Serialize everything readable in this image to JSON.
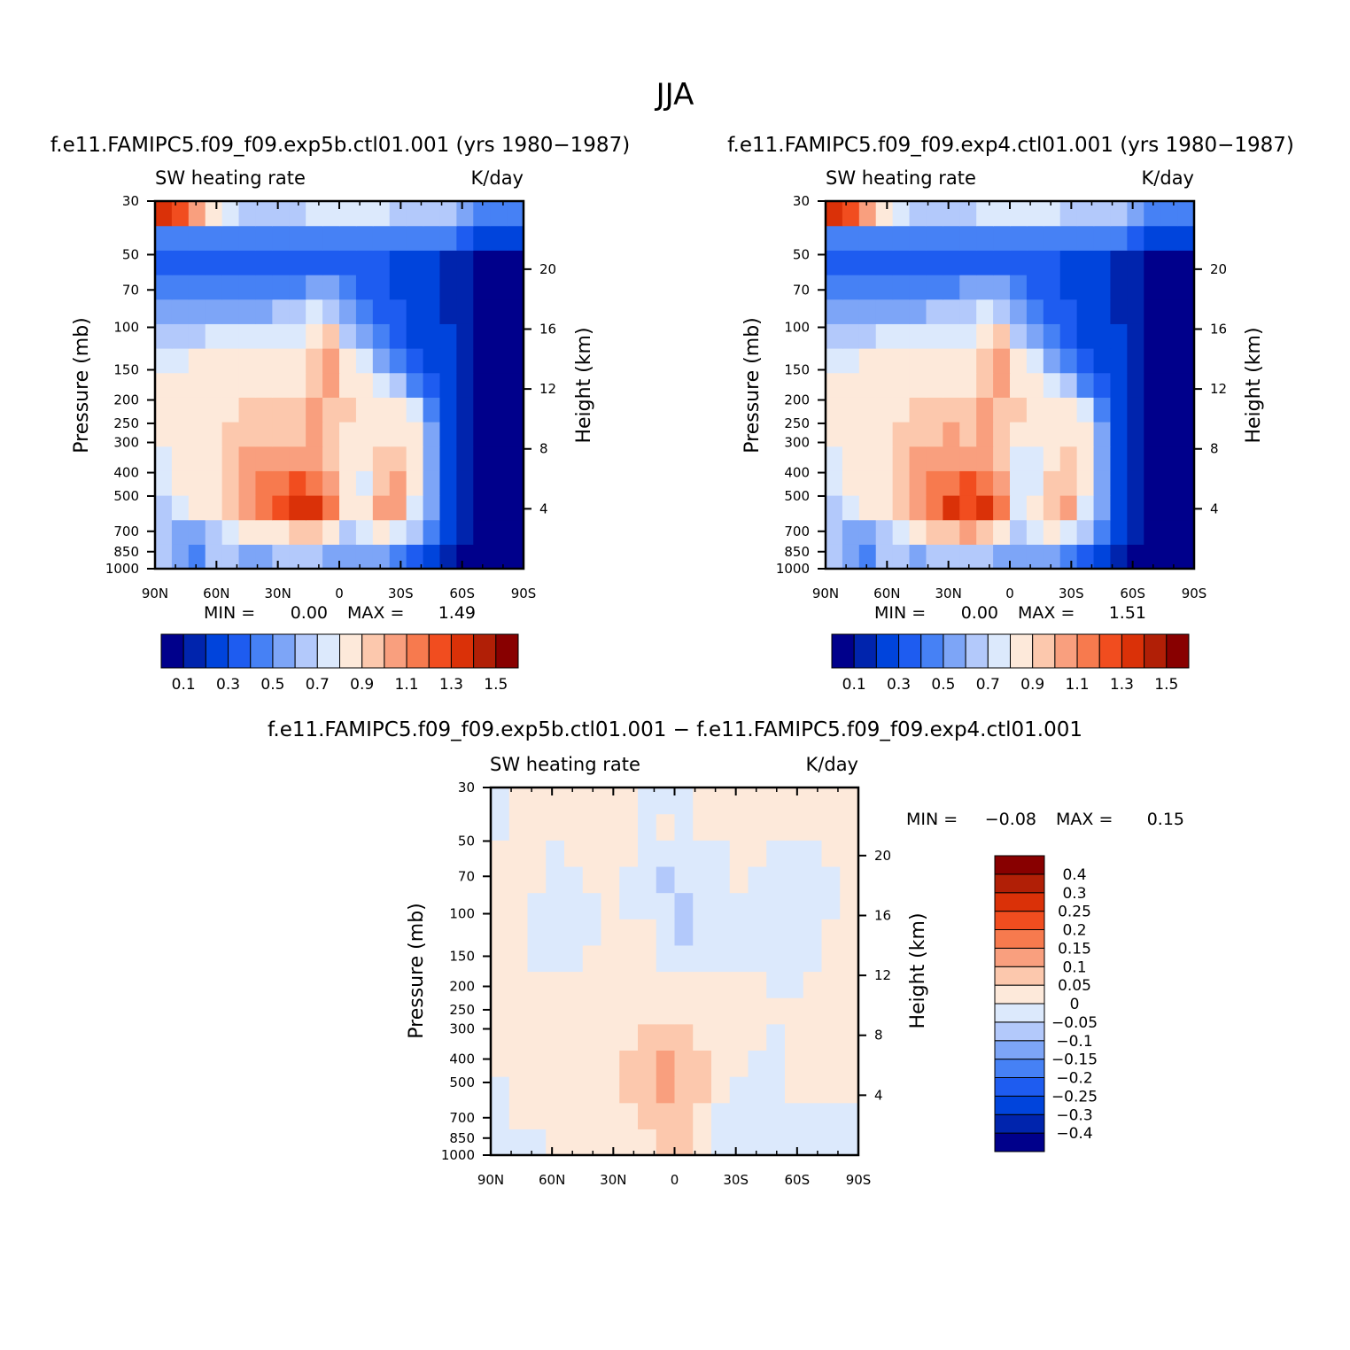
{
  "figure": {
    "title": "JJA"
  },
  "colors": {
    "full_field": [
      "#00008b",
      "#0024ad",
      "#0044dc",
      "#1e5cf0",
      "#4681f5",
      "#7da5f7",
      "#b3c9fb",
      "#dce9fc",
      "#fde9da",
      "#fcc8ad",
      "#f99f7e",
      "#f77a4e",
      "#f14d1f",
      "#da3108",
      "#b11f06",
      "#880000"
    ],
    "difference": [
      "#00008b",
      "#0024ad",
      "#0044dc",
      "#1e5cf0",
      "#4681f5",
      "#7da5f7",
      "#b3c9fb",
      "#dce9fc",
      "#fde9da",
      "#fcc8ad",
      "#f99f7e",
      "#f77a4e",
      "#f14d1f",
      "#da3108",
      "#b11f06",
      "#880000"
    ]
  },
  "chart_data": [
    {
      "type": "heatmap",
      "case": "f.e11.FAMIPC5.f09_f09.exp5b.ctl01.001 (yrs 1980−1987)",
      "variable": "SW heating rate",
      "units": "K/day",
      "ylabel": "Pressure (mb)",
      "ylabel_right": "Height (km)",
      "x_ticks": [
        "90N",
        "60N",
        "30N",
        "0",
        "30S",
        "60S",
        "90S"
      ],
      "y_ticks": [
        "30",
        "50",
        "70",
        "100",
        "150",
        "200",
        "250",
        "300",
        "400",
        "500",
        "700",
        "850",
        "1000"
      ],
      "y_ticks_right": [
        "20",
        "16",
        "12",
        "8",
        "4"
      ],
      "min_label": "MIN =",
      "min_value": "0.00",
      "max_label": "MAX =",
      "max_value": "1.49",
      "colorbar_labels": [
        "0.1",
        "0.3",
        "0.5",
        "0.7",
        "0.9",
        "1.1",
        "1.3",
        "1.5"
      ],
      "ylim": [
        1000,
        30
      ],
      "xlim": [
        90,
        -90
      ],
      "yscale": "log",
      "values_in_levels": [
        [
          6,
          5,
          4,
          6,
          6,
          5,
          5,
          6,
          6,
          6,
          5,
          5,
          5,
          5,
          4,
          3,
          2,
          1,
          0,
          0,
          0,
          0
        ],
        [
          6,
          5,
          5,
          6,
          7,
          8,
          8,
          8,
          9,
          9,
          8,
          6,
          7,
          8,
          7,
          6,
          4,
          2,
          1,
          0,
          0,
          0
        ],
        [
          6,
          7,
          8,
          8,
          9,
          10,
          11,
          12,
          13,
          13,
          11,
          8,
          8,
          10,
          10,
          7,
          5,
          2,
          1,
          0,
          0,
          0
        ],
        [
          7,
          8,
          8,
          8,
          9,
          10,
          11,
          11,
          12,
          11,
          10,
          8,
          7,
          9,
          10,
          8,
          5,
          2,
          1,
          0,
          0,
          0
        ],
        [
          7,
          8,
          8,
          8,
          9,
          10,
          10,
          10,
          10,
          10,
          9,
          8,
          8,
          9,
          9,
          8,
          5,
          2,
          1,
          0,
          0,
          0
        ],
        [
          8,
          8,
          8,
          8,
          9,
          9,
          9,
          9,
          9,
          10,
          9,
          8,
          8,
          8,
          8,
          8,
          5,
          2,
          1,
          0,
          0,
          0
        ],
        [
          8,
          8,
          8,
          8,
          8,
          9,
          9,
          9,
          9,
          10,
          9,
          9,
          8,
          8,
          8,
          7,
          4,
          2,
          1,
          0,
          0,
          0
        ],
        [
          8,
          8,
          8,
          8,
          8,
          8,
          8,
          8,
          8,
          9,
          10,
          8,
          8,
          7,
          6,
          4,
          3,
          2,
          1,
          0,
          0,
          0
        ],
        [
          7,
          7,
          8,
          8,
          8,
          8,
          8,
          8,
          8,
          9,
          10,
          8,
          7,
          5,
          4,
          3,
          2,
          2,
          1,
          0,
          0,
          0
        ],
        [
          6,
          6,
          6,
          7,
          7,
          7,
          7,
          7,
          7,
          8,
          9,
          6,
          5,
          4,
          3,
          2,
          2,
          2,
          1,
          0,
          0,
          0
        ],
        [
          5,
          5,
          5,
          5,
          5,
          5,
          5,
          6,
          6,
          7,
          6,
          5,
          4,
          3,
          3,
          2,
          2,
          1,
          1,
          0,
          0,
          0
        ],
        [
          4,
          4,
          4,
          4,
          4,
          4,
          4,
          4,
          4,
          5,
          5,
          4,
          3,
          3,
          2,
          2,
          2,
          1,
          1,
          0,
          0,
          0
        ],
        [
          3,
          3,
          3,
          3,
          3,
          3,
          3,
          3,
          3,
          3,
          3,
          3,
          3,
          3,
          2,
          2,
          2,
          1,
          1,
          0,
          0,
          0
        ],
        [
          4,
          4,
          4,
          4,
          4,
          4,
          4,
          4,
          4,
          4,
          4,
          4,
          4,
          4,
          4,
          4,
          4,
          4,
          3,
          2,
          2,
          2
        ],
        [
          13,
          12,
          10,
          8,
          7,
          6,
          6,
          6,
          6,
          7,
          7,
          7,
          7,
          7,
          6,
          6,
          6,
          6,
          5,
          4,
          4,
          4
        ]
      ]
    },
    {
      "type": "heatmap",
      "case": "f.e11.FAMIPC5.f09_f09.exp4.ctl01.001 (yrs 1980−1987)",
      "variable": "SW heating rate",
      "units": "K/day",
      "ylabel": "Pressure (mb)",
      "ylabel_right": "Height (km)",
      "x_ticks": [
        "90N",
        "60N",
        "30N",
        "0",
        "30S",
        "60S",
        "90S"
      ],
      "y_ticks": [
        "30",
        "50",
        "70",
        "100",
        "150",
        "200",
        "250",
        "300",
        "400",
        "500",
        "700",
        "850",
        "1000"
      ],
      "y_ticks_right": [
        "20",
        "16",
        "12",
        "8",
        "4"
      ],
      "min_label": "MIN =",
      "min_value": "0.00",
      "max_label": "MAX =",
      "max_value": "1.51",
      "colorbar_labels": [
        "0.1",
        "0.3",
        "0.5",
        "0.7",
        "0.9",
        "1.1",
        "1.3",
        "1.5"
      ],
      "ylim": [
        1000,
        30
      ],
      "xlim": [
        90,
        -90
      ],
      "yscale": "log",
      "values_in_levels": [
        [
          6,
          5,
          4,
          6,
          6,
          5,
          6,
          6,
          6,
          6,
          5,
          5,
          5,
          5,
          4,
          3,
          2,
          1,
          0,
          0,
          0,
          0
        ],
        [
          6,
          5,
          5,
          6,
          7,
          8,
          9,
          9,
          10,
          9,
          8,
          6,
          7,
          8,
          7,
          6,
          4,
          2,
          1,
          0,
          0,
          0
        ],
        [
          6,
          7,
          8,
          8,
          9,
          10,
          11,
          13,
          12,
          13,
          11,
          7,
          8,
          9,
          10,
          7,
          5,
          2,
          1,
          0,
          0,
          0
        ],
        [
          7,
          8,
          8,
          8,
          9,
          10,
          11,
          11,
          12,
          11,
          10,
          7,
          7,
          9,
          9,
          8,
          5,
          2,
          1,
          0,
          0,
          0
        ],
        [
          7,
          8,
          8,
          8,
          9,
          10,
          10,
          10,
          10,
          10,
          9,
          7,
          7,
          8,
          9,
          8,
          5,
          2,
          1,
          0,
          0,
          0
        ],
        [
          8,
          8,
          8,
          8,
          9,
          9,
          9,
          10,
          9,
          10,
          9,
          8,
          8,
          8,
          8,
          8,
          5,
          2,
          1,
          0,
          0,
          0
        ],
        [
          8,
          8,
          8,
          8,
          8,
          9,
          9,
          9,
          9,
          10,
          9,
          9,
          8,
          8,
          8,
          7,
          4,
          2,
          1,
          0,
          0,
          0
        ],
        [
          8,
          8,
          8,
          8,
          8,
          8,
          8,
          8,
          8,
          9,
          10,
          8,
          8,
          7,
          6,
          4,
          3,
          2,
          1,
          0,
          0,
          0
        ],
        [
          7,
          7,
          8,
          8,
          8,
          8,
          8,
          8,
          8,
          9,
          10,
          8,
          7,
          5,
          4,
          3,
          2,
          2,
          1,
          0,
          0,
          0
        ],
        [
          6,
          6,
          6,
          7,
          7,
          7,
          7,
          7,
          7,
          8,
          9,
          6,
          5,
          4,
          3,
          2,
          2,
          2,
          1,
          0,
          0,
          0
        ],
        [
          5,
          5,
          5,
          5,
          5,
          5,
          6,
          6,
          6,
          7,
          6,
          5,
          4,
          3,
          3,
          2,
          2,
          1,
          1,
          0,
          0,
          0
        ],
        [
          4,
          4,
          4,
          4,
          4,
          4,
          4,
          4,
          5,
          5,
          5,
          4,
          3,
          3,
          2,
          2,
          2,
          1,
          1,
          0,
          0,
          0
        ],
        [
          3,
          3,
          3,
          3,
          3,
          3,
          3,
          3,
          3,
          3,
          3,
          3,
          3,
          3,
          2,
          2,
          2,
          1,
          1,
          0,
          0,
          0
        ],
        [
          4,
          4,
          4,
          4,
          4,
          4,
          4,
          4,
          4,
          4,
          4,
          4,
          4,
          4,
          4,
          4,
          4,
          4,
          3,
          2,
          2,
          2
        ],
        [
          13,
          12,
          10,
          8,
          7,
          6,
          6,
          6,
          6,
          7,
          7,
          7,
          7,
          7,
          6,
          6,
          6,
          6,
          5,
          4,
          4,
          4
        ]
      ]
    },
    {
      "type": "heatmap",
      "case": "f.e11.FAMIPC5.f09_f09.exp5b.ctl01.001 − f.e11.FAMIPC5.f09_f09.exp4.ctl01.001",
      "variable": "SW heating rate",
      "units": "K/day",
      "ylabel": "Pressure (mb)",
      "ylabel_right": "Height (km)",
      "x_ticks": [
        "90N",
        "60N",
        "30N",
        "0",
        "30S",
        "60S",
        "90S"
      ],
      "y_ticks": [
        "30",
        "50",
        "70",
        "100",
        "150",
        "200",
        "250",
        "300",
        "400",
        "500",
        "700",
        "850",
        "1000"
      ],
      "y_ticks_right": [
        "20",
        "16",
        "12",
        "8",
        "4"
      ],
      "min_label": "MIN =",
      "min_value": "−0.08",
      "max_label": "MAX =",
      "max_value": "0.15",
      "colorbar_labels": [
        "0.4",
        "0.3",
        "0.25",
        "0.2",
        "0.15",
        "0.1",
        "0.05",
        "0",
        "−0.05",
        "−0.1",
        "−0.15",
        "−0.2",
        "−0.25",
        "−0.3",
        "−0.4"
      ],
      "ylim": [
        1000,
        30
      ],
      "xlim": [
        90,
        -90
      ],
      "yscale": "log",
      "values_in_levels": [
        [
          7,
          7,
          7,
          8,
          8,
          8,
          8,
          8,
          8,
          9,
          9,
          8,
          7,
          7,
          7,
          7,
          7,
          7,
          7,
          7
        ],
        [
          7,
          8,
          8,
          8,
          8,
          8,
          8,
          8,
          9,
          9,
          9,
          8,
          7,
          7,
          7,
          7,
          7,
          7,
          7,
          7
        ],
        [
          7,
          8,
          8,
          8,
          8,
          8,
          8,
          9,
          9,
          10,
          9,
          9,
          8,
          7,
          7,
          7,
          8,
          8,
          8,
          8
        ],
        [
          8,
          8,
          8,
          8,
          8,
          8,
          8,
          9,
          9,
          10,
          9,
          9,
          8,
          8,
          7,
          7,
          8,
          8,
          8,
          8
        ],
        [
          8,
          8,
          8,
          8,
          8,
          8,
          8,
          8,
          9,
          9,
          9,
          8,
          8,
          8,
          8,
          7,
          8,
          8,
          8,
          8
        ],
        [
          8,
          8,
          8,
          8,
          8,
          8,
          8,
          8,
          8,
          8,
          8,
          8,
          8,
          8,
          8,
          8,
          8,
          8,
          8,
          8
        ],
        [
          8,
          8,
          8,
          8,
          8,
          8,
          8,
          8,
          8,
          8,
          8,
          8,
          8,
          8,
          8,
          7,
          7,
          8,
          8,
          8
        ],
        [
          8,
          8,
          7,
          7,
          7,
          8,
          8,
          8,
          8,
          7,
          7,
          7,
          7,
          7,
          7,
          7,
          7,
          7,
          8,
          8
        ],
        [
          8,
          8,
          7,
          7,
          7,
          7,
          8,
          8,
          8,
          7,
          6,
          7,
          7,
          7,
          7,
          7,
          7,
          7,
          8,
          8
        ],
        [
          8,
          8,
          7,
          7,
          7,
          7,
          8,
          7,
          7,
          7,
          6,
          7,
          7,
          7,
          7,
          7,
          7,
          7,
          7,
          8
        ],
        [
          8,
          8,
          8,
          7,
          7,
          8,
          8,
          7,
          7,
          6,
          7,
          7,
          7,
          8,
          7,
          7,
          7,
          7,
          7,
          8
        ],
        [
          8,
          8,
          8,
          7,
          8,
          8,
          8,
          8,
          7,
          7,
          7,
          7,
          7,
          8,
          8,
          7,
          7,
          7,
          8,
          8
        ],
        [
          7,
          8,
          8,
          8,
          8,
          8,
          8,
          8,
          7,
          8,
          7,
          8,
          8,
          8,
          8,
          8,
          8,
          8,
          8,
          8
        ],
        [
          7,
          8,
          8,
          8,
          8,
          8,
          8,
          8,
          7,
          7,
          7,
          8,
          8,
          8,
          8,
          8,
          8,
          8,
          8,
          8
        ]
      ]
    }
  ]
}
